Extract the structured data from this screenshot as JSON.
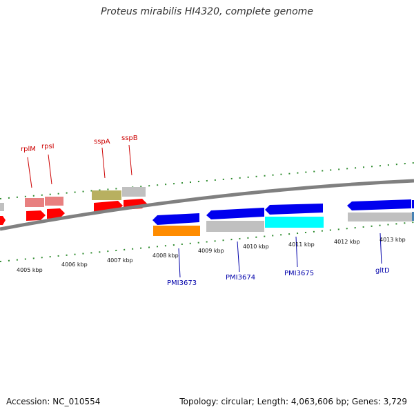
{
  "header": {
    "title": "Proteus mirabilis HI4320, complete genome"
  },
  "footer": {
    "accession": "Accession: NC_010554",
    "summary": "Topology: circular; Length: 4,063,606 bp; Genes: 3,729"
  },
  "map": {
    "colors": {
      "backbone": "#808080",
      "tick": "#2e8b2e",
      "forward_cds": "#ff0000",
      "forward_other": "#e88080",
      "reverse_cds": "#0000ee",
      "orange": "#ff8c00",
      "olive": "#b8b060",
      "gray": "#c0c0c0",
      "cyan": "#00ffff",
      "steel": "#4682b4"
    },
    "kbp_labels": [
      "4005 kbp",
      "4006 kbp",
      "4007 kbp",
      "4008 kbp",
      "4009 kbp",
      "4010 kbp",
      "4011 kbp",
      "4012 kbp",
      "4013 kbp"
    ],
    "top_genes": [
      "rplM",
      "rpsI",
      "sspA",
      "sspB"
    ],
    "bottom_genes": [
      "PMI3673",
      "PMI3674",
      "PMI3675",
      "gltD"
    ]
  }
}
